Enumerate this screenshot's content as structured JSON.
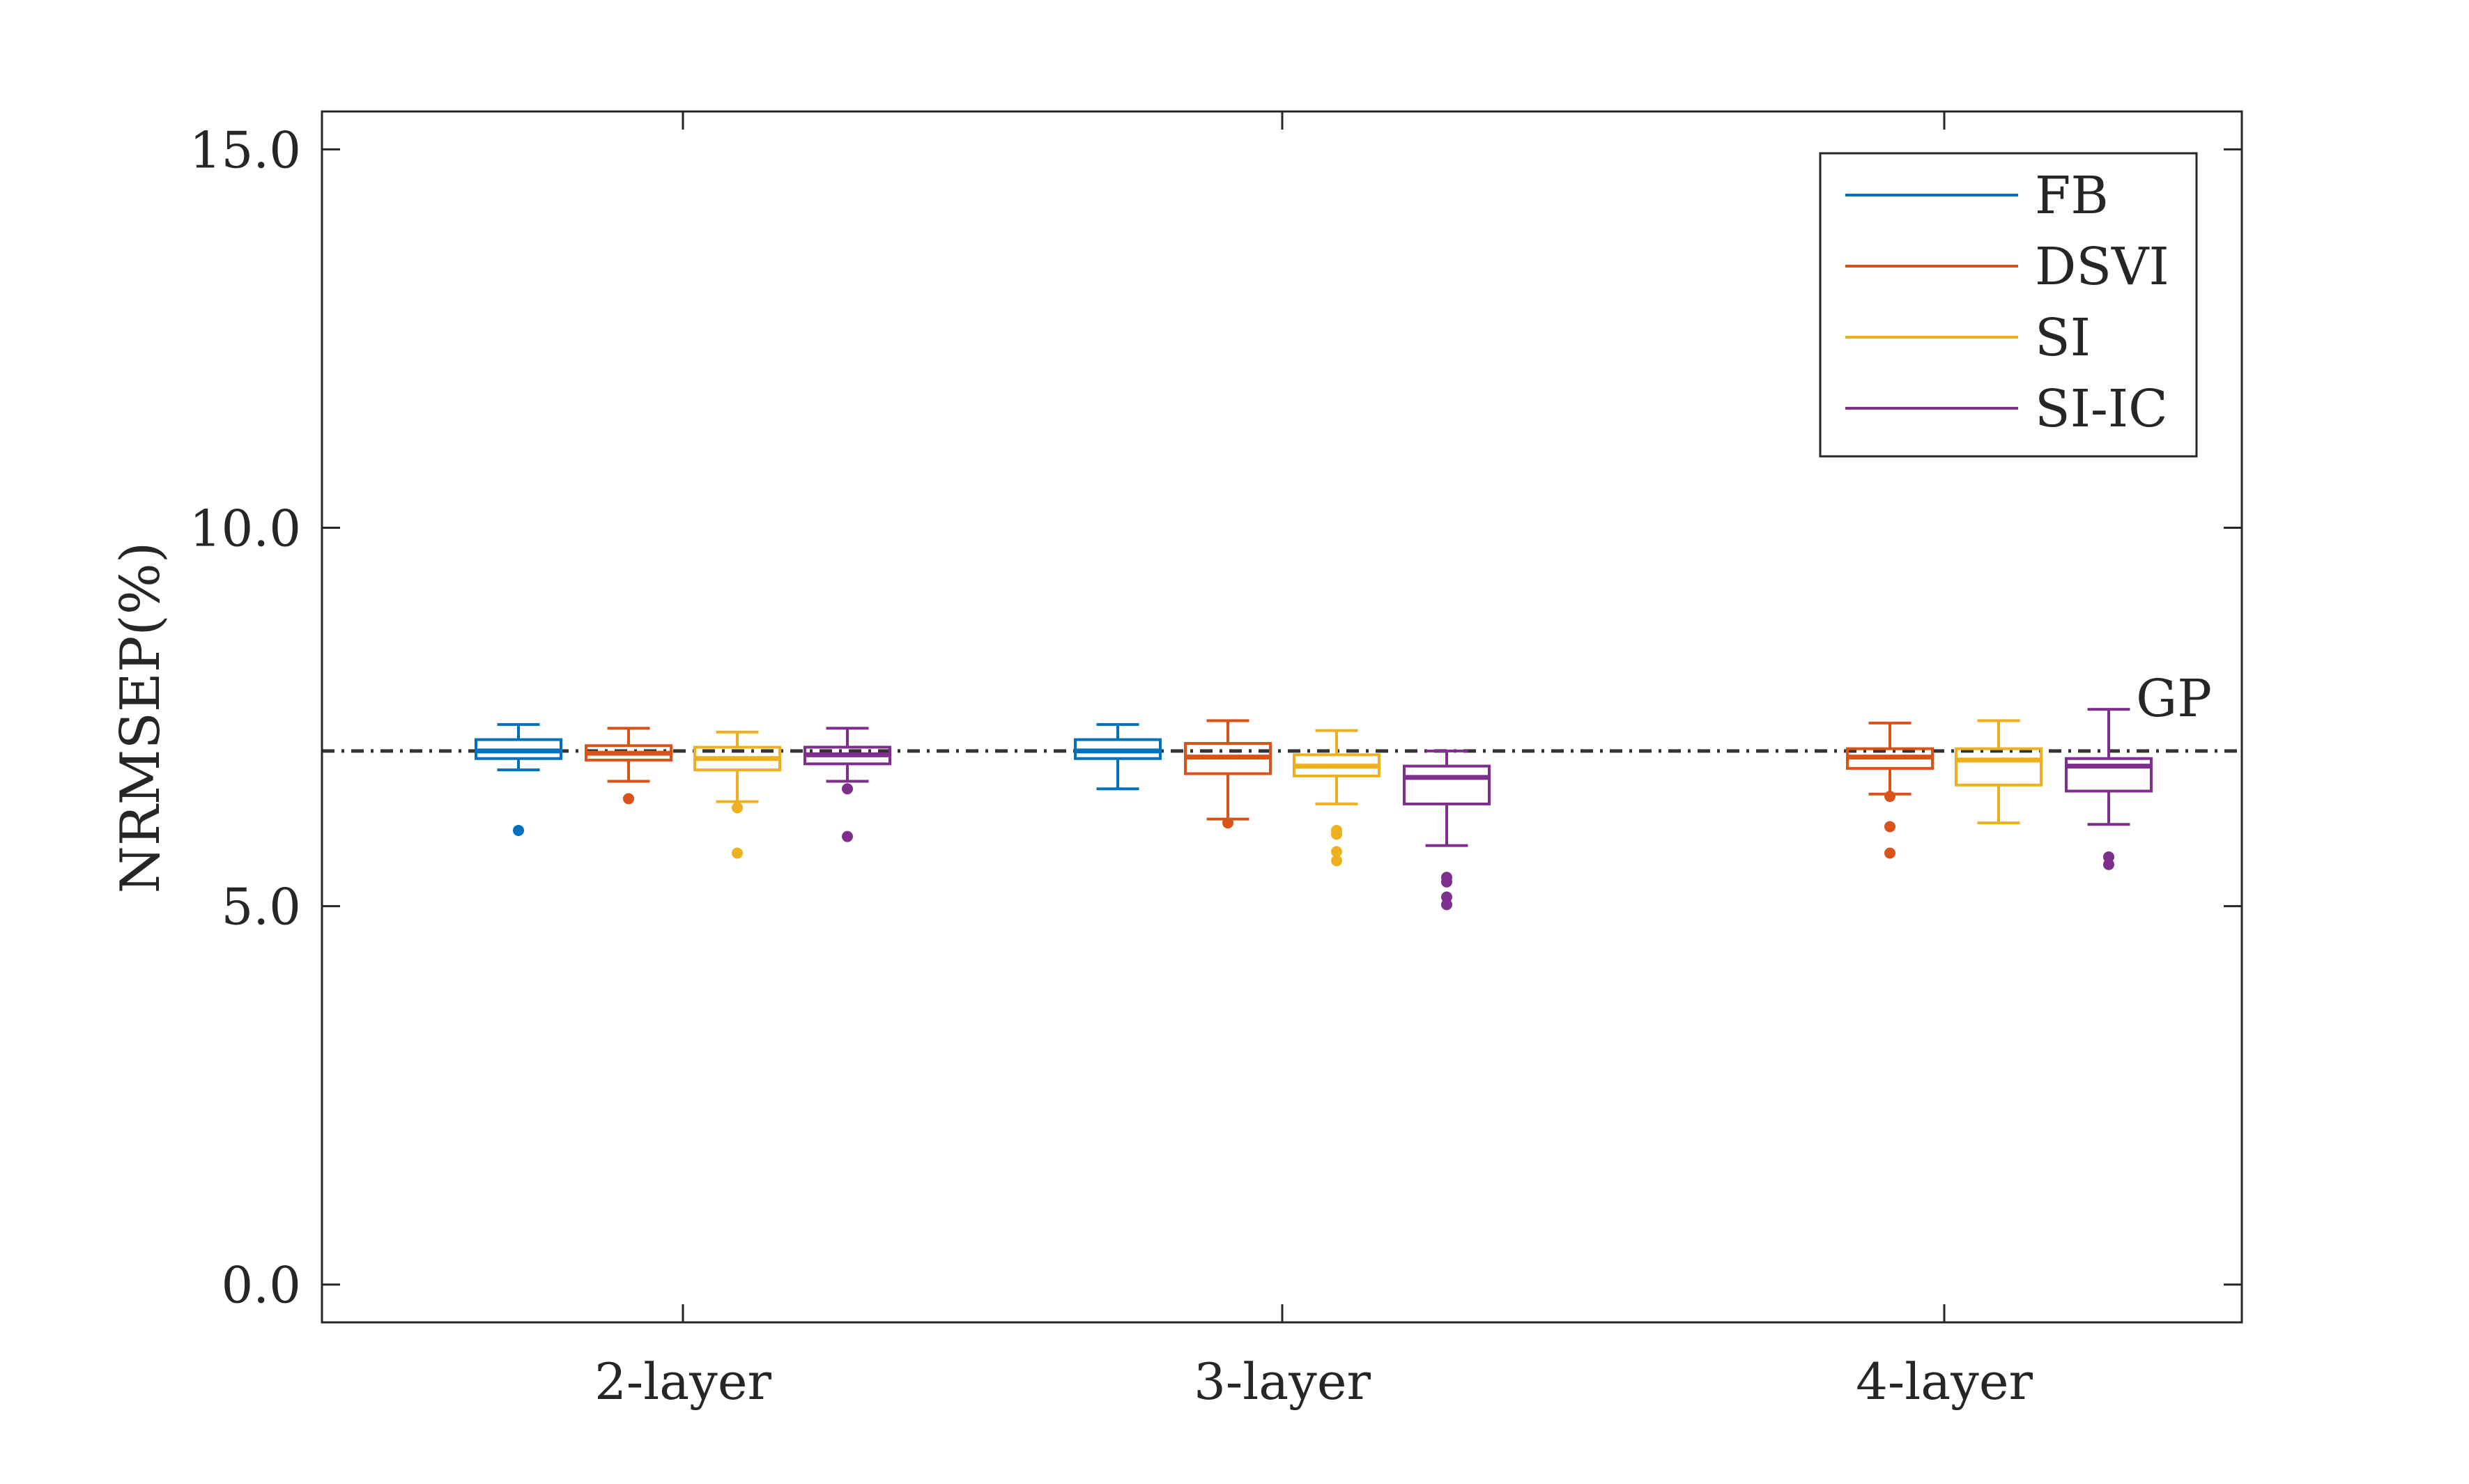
{
  "chart_data": {
    "type": "box",
    "title": "",
    "xlabel": "",
    "ylabel": "NRMSEP(%)",
    "ylim": [
      -0.5,
      15.5
    ],
    "yticks": [
      0.0,
      5.0,
      10.0,
      15.0
    ],
    "ytick_labels": [
      "0.0",
      "5.0",
      "10.0",
      "15.0"
    ],
    "categories": [
      "2-layer",
      "3-layer",
      "4-layer"
    ],
    "reference_line": {
      "label": "GP",
      "value": 7.05,
      "color": "#333333"
    },
    "legend": {
      "position": "top-right"
    },
    "series": [
      {
        "name": "FB",
        "color": "#0072BD",
        "boxes": [
          {
            "whisker_low": 6.8,
            "q1": 6.95,
            "median": 7.05,
            "q3": 7.2,
            "whisker_high": 7.4,
            "outliers": [
              6.0
            ]
          },
          {
            "whisker_low": 6.55,
            "q1": 6.95,
            "median": 7.05,
            "q3": 7.2,
            "whisker_high": 7.4,
            "outliers": []
          },
          null
        ]
      },
      {
        "name": "DSVI",
        "color": "#D95319",
        "boxes": [
          {
            "whisker_low": 6.65,
            "q1": 6.93,
            "median": 7.02,
            "q3": 7.12,
            "whisker_high": 7.35,
            "outliers": [
              6.42
            ]
          },
          {
            "whisker_low": 6.15,
            "q1": 6.75,
            "median": 6.97,
            "q3": 7.15,
            "whisker_high": 7.45,
            "outliers": [
              6.1
            ]
          },
          {
            "whisker_low": 6.48,
            "q1": 6.82,
            "median": 6.97,
            "q3": 7.08,
            "whisker_high": 7.42,
            "outliers": [
              6.45,
              6.05,
              5.7
            ]
          }
        ]
      },
      {
        "name": "SI",
        "color": "#EDB120",
        "boxes": [
          {
            "whisker_low": 6.38,
            "q1": 6.8,
            "median": 6.95,
            "q3": 7.1,
            "whisker_high": 7.3,
            "outliers": [
              6.3,
              5.7
            ]
          },
          {
            "whisker_low": 6.35,
            "q1": 6.72,
            "median": 6.85,
            "q3": 7.0,
            "whisker_high": 7.32,
            "outliers": [
              6.0,
              5.95,
              5.72,
              5.6
            ]
          },
          {
            "whisker_low": 6.1,
            "q1": 6.6,
            "median": 6.93,
            "q3": 7.08,
            "whisker_high": 7.45,
            "outliers": []
          }
        ]
      },
      {
        "name": "SI-IC",
        "color": "#7E2F8E",
        "boxes": [
          {
            "whisker_low": 6.65,
            "q1": 6.88,
            "median": 7.0,
            "q3": 7.1,
            "whisker_high": 7.35,
            "outliers": [
              6.55,
              5.92
            ]
          },
          {
            "whisker_low": 5.8,
            "q1": 6.35,
            "median": 6.7,
            "q3": 6.85,
            "whisker_high": 7.05,
            "outliers": [
              5.38,
              5.32,
              5.12,
              5.02
            ]
          },
          {
            "whisker_low": 6.08,
            "q1": 6.52,
            "median": 6.85,
            "q3": 6.95,
            "whisker_high": 7.6,
            "outliers": [
              5.65,
              5.55
            ]
          }
        ]
      }
    ]
  }
}
